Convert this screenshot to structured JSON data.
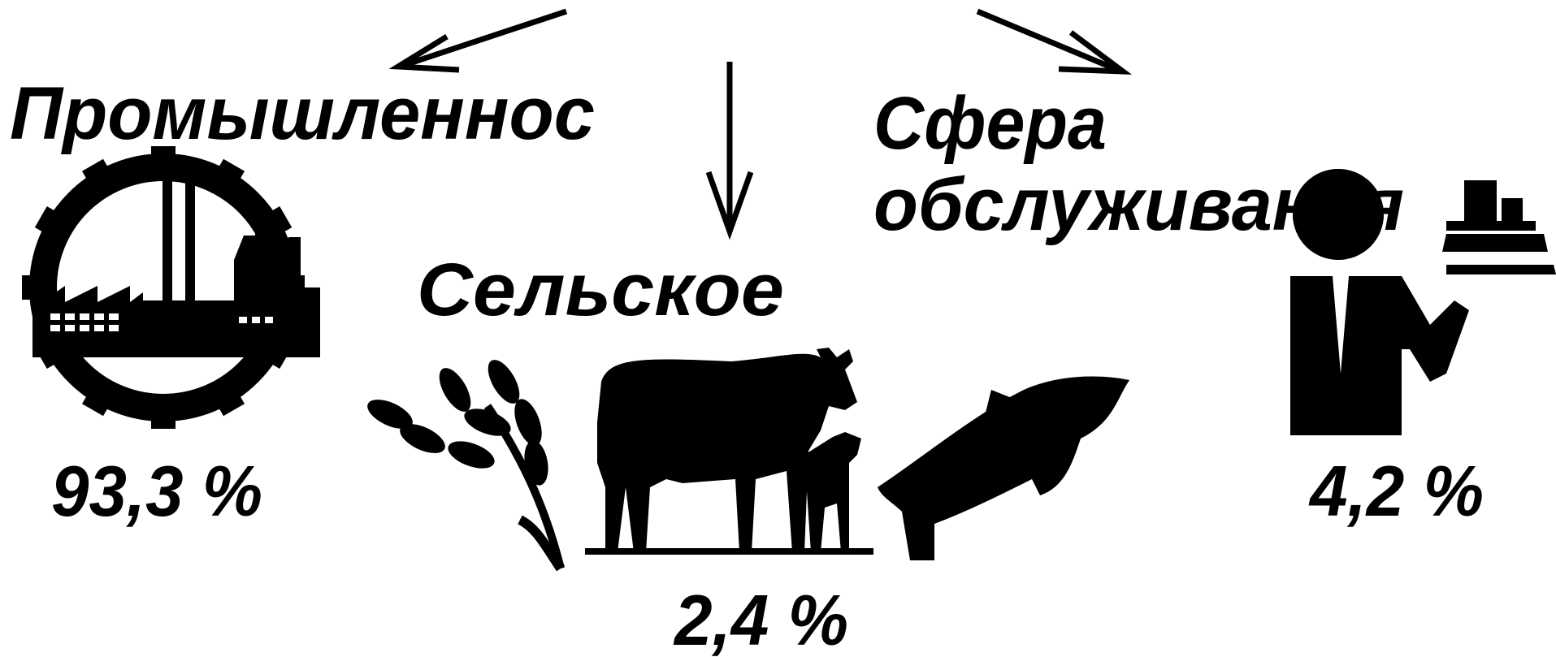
{
  "sectors": [
    {
      "label": [
        "Промышленнос"
      ],
      "share": "93,3 %"
    },
    {
      "label": [
        "Сельское"
      ],
      "share": "2,4 %"
    },
    {
      "label": [
        "Сфера",
        "обслуживания"
      ],
      "share": "4,2 %"
    }
  ]
}
